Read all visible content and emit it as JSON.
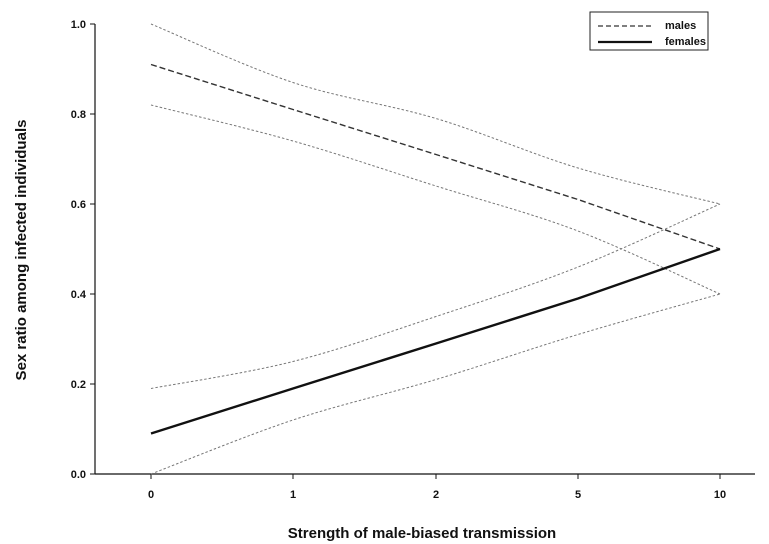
{
  "chart_data": {
    "type": "line",
    "title": "",
    "xlabel": "Strength of male-biased transmission",
    "ylabel": "Sex  ratio among infected individuals",
    "x_scale": "categorical",
    "x": [
      "0",
      "1",
      "2",
      "5",
      "10"
    ],
    "ylim": [
      0.0,
      1.0
    ],
    "y_ticks": [
      "0.0",
      "0.2",
      "0.4",
      "0.6",
      "0.8",
      "1.0"
    ],
    "grid": false,
    "legend_position": "top-right",
    "series": [
      {
        "name": "males",
        "style": "dashed",
        "color": "#333333",
        "values": [
          0.91,
          0.81,
          0.71,
          0.61,
          0.5
        ],
        "ci_lower": [
          0.82,
          0.74,
          0.64,
          0.54,
          0.4
        ],
        "ci_upper": [
          1.0,
          0.87,
          0.79,
          0.68,
          0.6
        ]
      },
      {
        "name": "females",
        "style": "solid",
        "color": "#111111",
        "values": [
          0.09,
          0.19,
          0.29,
          0.39,
          0.5
        ],
        "ci_lower": [
          0.0,
          0.12,
          0.21,
          0.31,
          0.4
        ],
        "ci_upper": [
          0.19,
          0.25,
          0.35,
          0.46,
          0.6
        ]
      }
    ]
  }
}
